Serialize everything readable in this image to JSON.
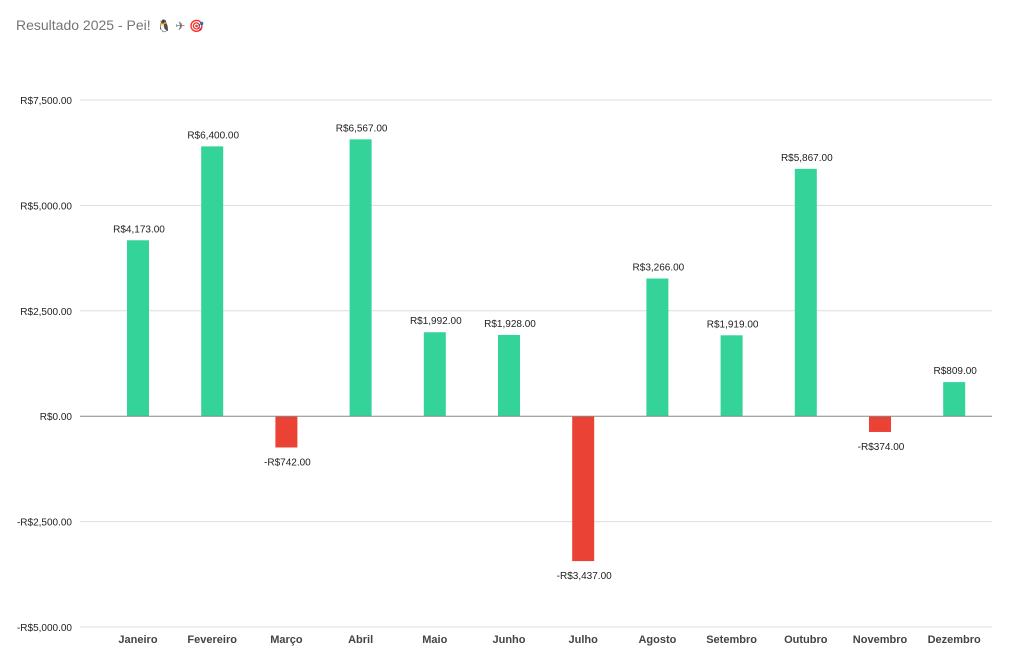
{
  "chart_data": {
    "type": "bar",
    "title": "Resultado 2025 - Pei!",
    "title_emojis": "🐧 ✈ 🎯",
    "categories": [
      "Janeiro",
      "Fevereiro",
      "Março",
      "Abril",
      "Maio",
      "Junho",
      "Julho",
      "Agosto",
      "Setembro",
      "Outubro",
      "Novembro",
      "Dezembro"
    ],
    "series": [
      {
        "values": [
          4173,
          6400,
          -742,
          6567,
          1992,
          1928,
          -3437,
          3266,
          1919,
          5867,
          -374,
          809
        ],
        "labels": [
          "R$4,173.00",
          "R$6,400.00",
          "-R$742.00",
          "R$6,567.00",
          "R$1,992.00",
          "R$1,928.00",
          "-R$3,437.00",
          "R$3,266.00",
          "R$1,919.00",
          "R$5,867.00",
          "-R$374.00",
          "R$809.00"
        ]
      }
    ],
    "ylim": [
      -5000,
      7500
    ],
    "yticks": [
      7500,
      5000,
      2500,
      0,
      -2500,
      -5000
    ],
    "ytick_labels": [
      "R$7,500.00",
      "R$5,000.00",
      "R$2,500.00",
      "R$0.00",
      "-R$2,500.00",
      "-R$5,000.00"
    ],
    "grid": true,
    "legend": "none",
    "xlabel": "",
    "ylabel": "",
    "colors": {
      "positive": "#34d399",
      "negative": "#ea4335",
      "grid": "#dddddd",
      "zero_line": "#888888"
    }
  }
}
